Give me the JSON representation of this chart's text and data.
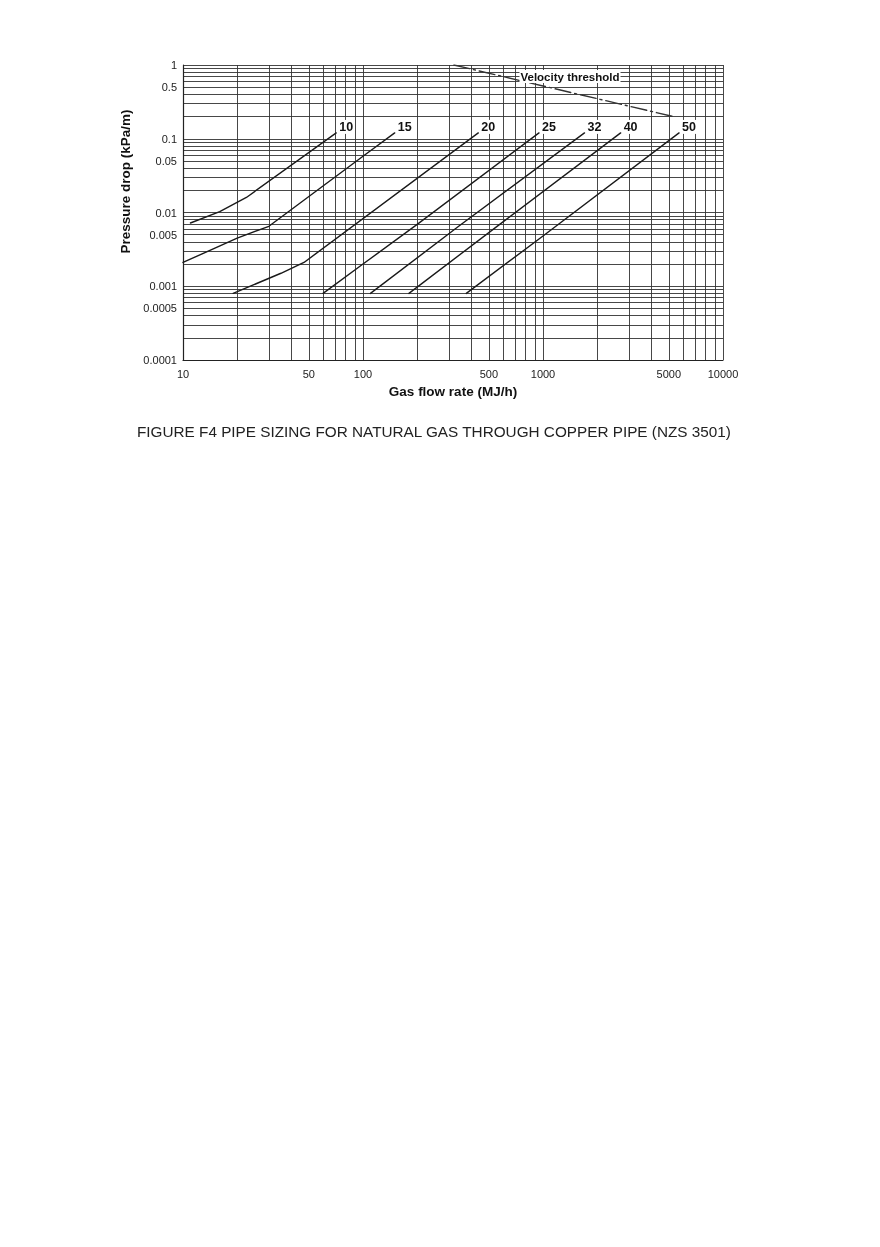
{
  "chart_data": {
    "type": "line",
    "title": "FIGURE F4 PIPE SIZING FOR NATURAL GAS THROUGH COPPER PIPE (NZS 3501)",
    "xlabel": "Gas flow rate (MJ/h)",
    "ylabel": "Pressure drop (kPa/m)",
    "log": "xy",
    "grid": true,
    "marker": "none",
    "line_style": "solid",
    "xlim": [
      10,
      10000
    ],
    "ylim": [
      0.0001,
      1
    ],
    "xticks": [
      10,
      {
        "value": 20,
        "label": null
      },
      {
        "value": 30,
        "label": null
      },
      {
        "value": 40,
        "label": null
      },
      50,
      {
        "value": 60,
        "label": null
      },
      {
        "value": 70,
        "label": null
      },
      {
        "value": 80,
        "label": null
      },
      {
        "value": 90,
        "label": null
      },
      100,
      {
        "value": 200,
        "label": null
      },
      {
        "value": 300,
        "label": null
      },
      {
        "value": 400,
        "label": null
      },
      500,
      {
        "value": 600,
        "label": null
      },
      {
        "value": 700,
        "label": null
      },
      {
        "value": 800,
        "label": null
      },
      {
        "value": 900,
        "label": null
      },
      1000,
      {
        "value": 2000,
        "label": null
      },
      {
        "value": 3000,
        "label": null
      },
      {
        "value": 4000,
        "label": null
      },
      5000,
      {
        "value": 6000,
        "label": null
      },
      {
        "value": 7000,
        "label": null
      },
      {
        "value": 8000,
        "label": null
      },
      {
        "value": 9000,
        "label": null
      },
      10000
    ],
    "yticks": [
      0.0001,
      {
        "value": 0.0002,
        "label": null
      },
      {
        "value": 0.0003,
        "label": null
      },
      {
        "value": 0.0004,
        "label": null
      },
      0.0005,
      {
        "value": 0.0006,
        "label": null
      },
      {
        "value": 0.0007,
        "label": null
      },
      {
        "value": 0.0008,
        "label": null
      },
      {
        "value": 0.0009,
        "label": null
      },
      0.001,
      {
        "value": 0.002,
        "label": null
      },
      {
        "value": 0.003,
        "label": null
      },
      {
        "value": 0.004,
        "label": null
      },
      0.005,
      {
        "value": 0.006,
        "label": null
      },
      {
        "value": 0.007,
        "label": null
      },
      {
        "value": 0.008,
        "label": null
      },
      {
        "value": 0.009,
        "label": null
      },
      0.01,
      {
        "value": 0.02,
        "label": null
      },
      {
        "value": 0.03,
        "label": null
      },
      {
        "value": 0.04,
        "label": null
      },
      0.05,
      {
        "value": 0.06,
        "label": null
      },
      {
        "value": 0.07,
        "label": null
      },
      {
        "value": 0.08,
        "label": null
      },
      {
        "value": 0.09,
        "label": null
      },
      0.1,
      {
        "value": 0.2,
        "label": null
      },
      {
        "value": 0.3,
        "label": null
      },
      {
        "value": 0.4,
        "label": null
      },
      0.5,
      {
        "value": 0.6,
        "label": null
      },
      {
        "value": 0.7,
        "label": null
      },
      {
        "value": 0.8,
        "label": null
      },
      {
        "value": 0.9,
        "label": null
      },
      1
    ],
    "series": [
      {
        "name": "10",
        "color": "#1a1a1a",
        "x": [
          11,
          16,
          22.5,
          71
        ],
        "values": [
          0.0072,
          0.0103,
          0.016,
          0.12
        ]
      },
      {
        "name": "15",
        "color": "#1a1a1a",
        "x": [
          10,
          20,
          30,
          100,
          150
        ],
        "values": [
          0.0021,
          0.0045,
          0.0065,
          0.058,
          0.12
        ]
      },
      {
        "name": "20",
        "color": "#1a1a1a",
        "x": [
          19,
          35,
          47,
          437
        ],
        "values": [
          0.0008,
          0.0015,
          0.0021,
          0.12
        ]
      },
      {
        "name": "25",
        "color": "#1a1a1a",
        "x": [
          60,
          100,
          200,
          950
        ],
        "values": [
          0.0008,
          0.002,
          0.0069,
          0.12
        ]
      },
      {
        "name": "32",
        "color": "#1a1a1a",
        "x": [
          110,
          340,
          1700
        ],
        "values": [
          0.0008,
          0.0065,
          0.12
        ]
      },
      {
        "name": "40",
        "color": "#1a1a1a",
        "x": [
          180,
          565,
          2700
        ],
        "values": [
          0.0008,
          0.0067,
          0.12
        ]
      },
      {
        "name": "50",
        "color": "#1a1a1a",
        "x": [
          375,
          1000,
          5700
        ],
        "values": [
          0.0008,
          0.0048,
          0.12
        ]
      },
      {
        "name": "Velocity threshold",
        "color": "#333333",
        "line_style": "dashed",
        "x": [
          320,
          1000,
          5300
        ],
        "values": [
          1,
          0.52,
          0.2
        ]
      }
    ]
  }
}
